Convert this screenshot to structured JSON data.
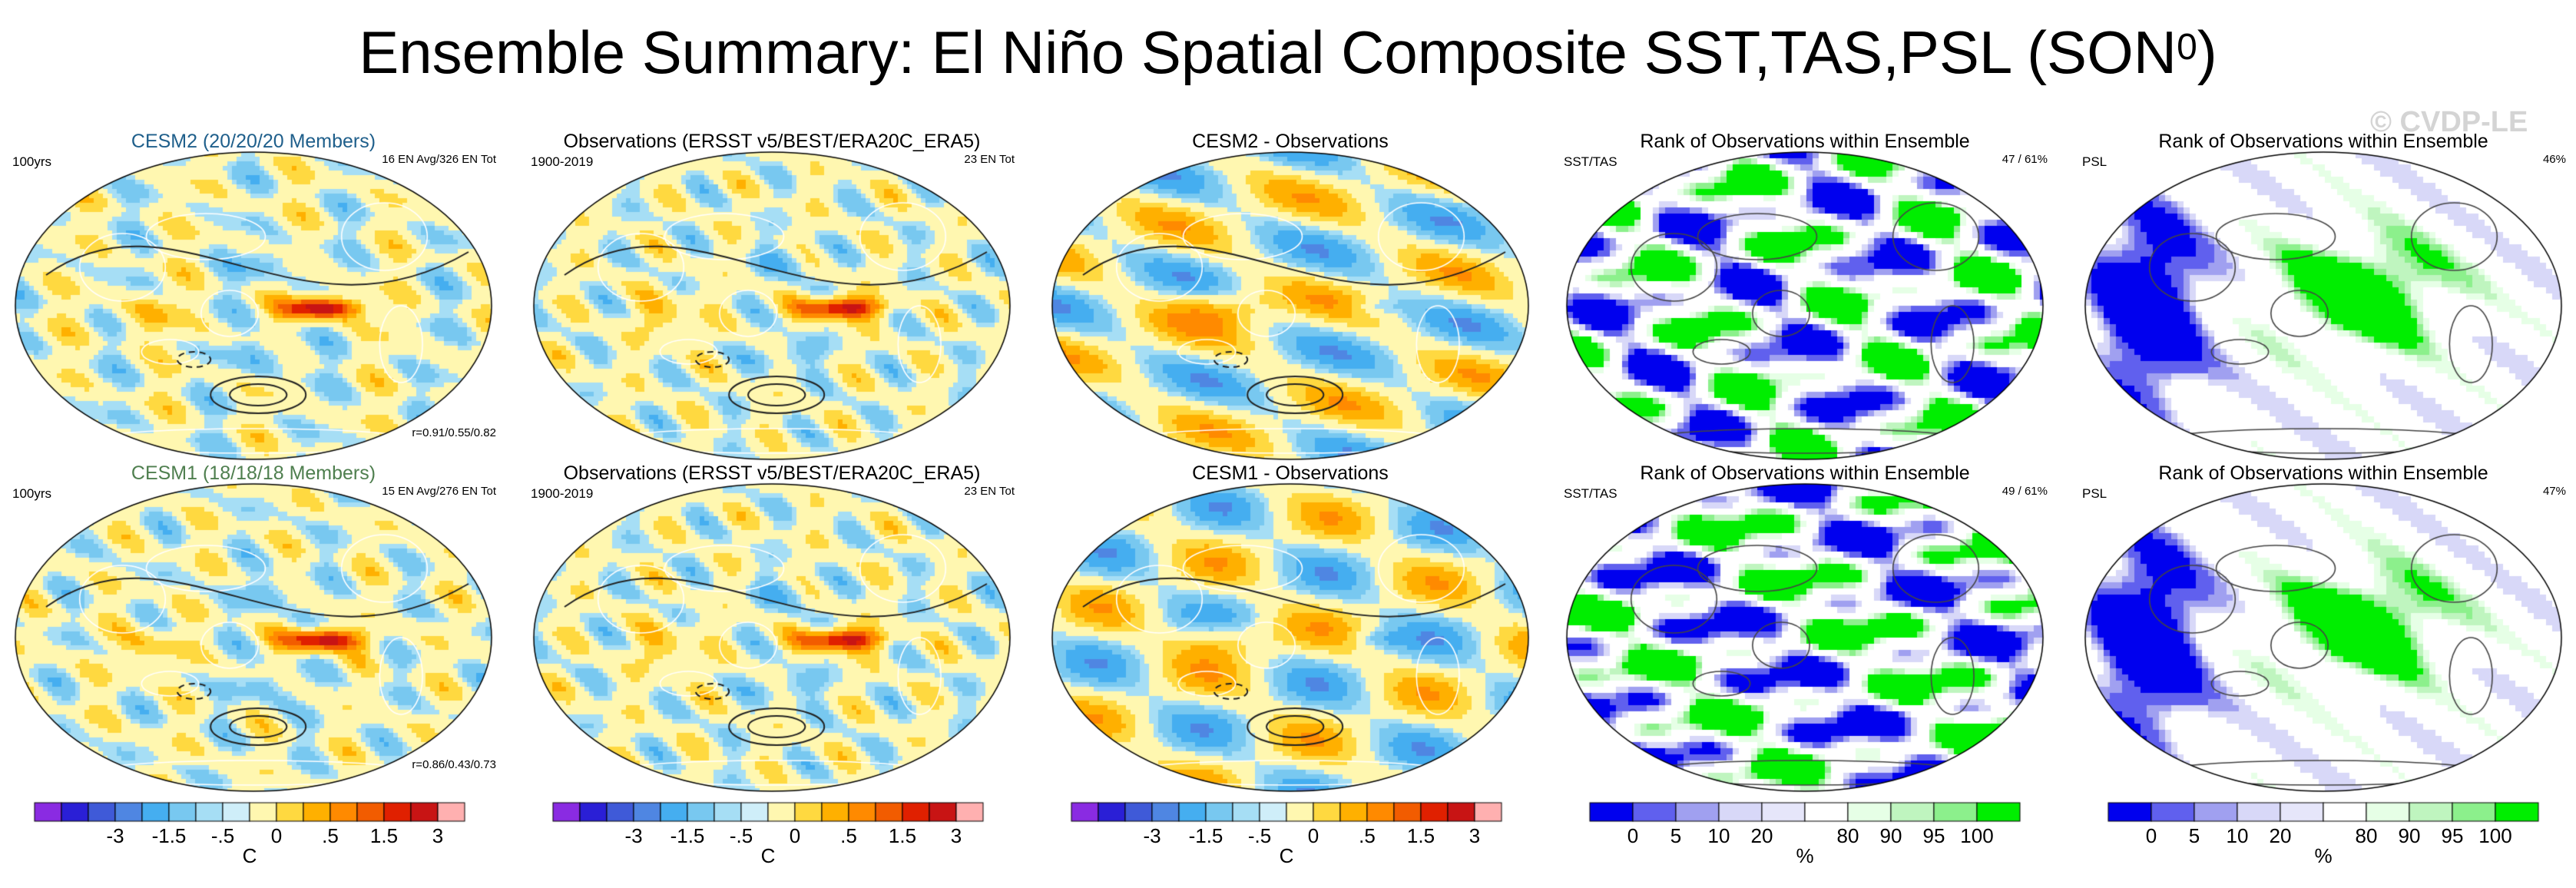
{
  "title": {
    "main": "Ensemble Summary: El Niño Spatial Composite SST,TAS,PSL (SON",
    "superscript": "0",
    "close": ")"
  },
  "watermark": "© CVDP-LE",
  "chart_data": {
    "type": "heatmap",
    "description_rows": 2,
    "panels": [
      {
        "row": 0,
        "col": 0,
        "kind": "anomaly",
        "title": "CESM2 (20/20/20 Members)",
        "title_color": "#1f5f8b",
        "left": "100yrs",
        "right": "16 EN Avg/326 EN Tot",
        "corr": "r=0.91/0.55/0.82",
        "variant": 0
      },
      {
        "row": 0,
        "col": 1,
        "kind": "anomaly",
        "title": "Observations (ERSST v5/BEST/ERA20C_ERA5)",
        "title_color": "#000000",
        "left": "1900-2019",
        "right": "23 EN Tot",
        "corr": "",
        "variant": 1
      },
      {
        "row": 0,
        "col": 2,
        "kind": "anomaly",
        "title": "CESM2 - Observations",
        "title_color": "#000000",
        "left": "",
        "right": "",
        "corr": "",
        "variant": 2
      },
      {
        "row": 0,
        "col": 3,
        "kind": "rank",
        "title": "Rank of Observations within Ensemble",
        "title_color": "#000000",
        "left": "SST/TAS",
        "right": "47 /  61%",
        "corr": "",
        "variant": 3
      },
      {
        "row": 0,
        "col": 4,
        "kind": "rank",
        "title": "Rank of Observations within Ensemble",
        "title_color": "#000000",
        "left": "PSL",
        "right": "46%",
        "corr": "",
        "variant": 4
      },
      {
        "row": 1,
        "col": 0,
        "kind": "anomaly",
        "title": "CESM1 (18/18/18 Members)",
        "title_color": "#4f7f4f",
        "left": "100yrs",
        "right": "15 EN Avg/276 EN Tot",
        "corr": "r=0.86/0.43/0.73",
        "variant": 5
      },
      {
        "row": 1,
        "col": 1,
        "kind": "anomaly",
        "title": "Observations (ERSST v5/BEST/ERA20C_ERA5)",
        "title_color": "#000000",
        "left": "1900-2019",
        "right": "23 EN Tot",
        "corr": "",
        "variant": 1
      },
      {
        "row": 1,
        "col": 2,
        "kind": "anomaly",
        "title": "CESM1 - Observations",
        "title_color": "#000000",
        "left": "",
        "right": "",
        "corr": "",
        "variant": 6
      },
      {
        "row": 1,
        "col": 3,
        "kind": "rank",
        "title": "Rank of Observations within Ensemble",
        "title_color": "#000000",
        "left": "SST/TAS",
        "right": "49 /  61%",
        "corr": "",
        "variant": 7
      },
      {
        "row": 1,
        "col": 4,
        "kind": "rank",
        "title": "Rank of Observations within Ensemble",
        "title_color": "#000000",
        "left": "PSL",
        "right": "47%",
        "corr": "",
        "variant": 8
      }
    ],
    "anomaly_colorbar": {
      "colors": [
        "#8a2be2",
        "#2a1fd6",
        "#3f5ad8",
        "#4f86e2",
        "#45aef0",
        "#78c8f0",
        "#a6def5",
        "#cfeef9",
        "#fff7b0",
        "#ffd940",
        "#ffb000",
        "#ff8a00",
        "#f25c00",
        "#e02000",
        "#c81414",
        "#ffb0b0"
      ],
      "ticks": [
        "-3",
        "-1.5",
        "-.5",
        "0",
        ".5",
        "1.5",
        "3"
      ],
      "unit": "C"
    },
    "rank_colorbar": {
      "colors": [
        "#0000ee",
        "#6060ee",
        "#a0a0f0",
        "#d8d8f8",
        "#e6e6fa",
        "#ffffff",
        "#e6ffe6",
        "#bff5bf",
        "#8cf08c",
        "#00ee00"
      ],
      "ticks": [
        "0",
        "5",
        "10",
        "20",
        "80",
        "90",
        "95",
        "100"
      ],
      "unit": "%"
    }
  }
}
